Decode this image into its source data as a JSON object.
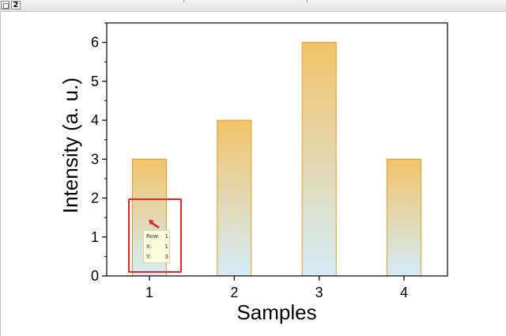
{
  "window": {
    "tab_number": "2"
  },
  "chart_data": {
    "type": "bar",
    "categories": [
      "1",
      "2",
      "3",
      "4"
    ],
    "values": [
      3,
      4,
      6,
      3
    ],
    "title": "",
    "xlabel": "Samples",
    "ylabel": "Intensity (a. u.)",
    "ylim": [
      0,
      6.5
    ],
    "yticks": [
      "0",
      "1",
      "2",
      "3",
      "4",
      "5",
      "6"
    ],
    "grid": false,
    "legend": "none",
    "bar_fill_top": "#f2c46a",
    "bar_fill_bottom": "#d4ecf8",
    "bar_edge": "#e69a2a"
  },
  "tooltip": {
    "row_label": "Row:",
    "row_value": "1",
    "x_label": "X:",
    "x_value": "1",
    "y_label": "Y:",
    "y_value": "3"
  },
  "annotation": {
    "color": "#e8242a"
  }
}
